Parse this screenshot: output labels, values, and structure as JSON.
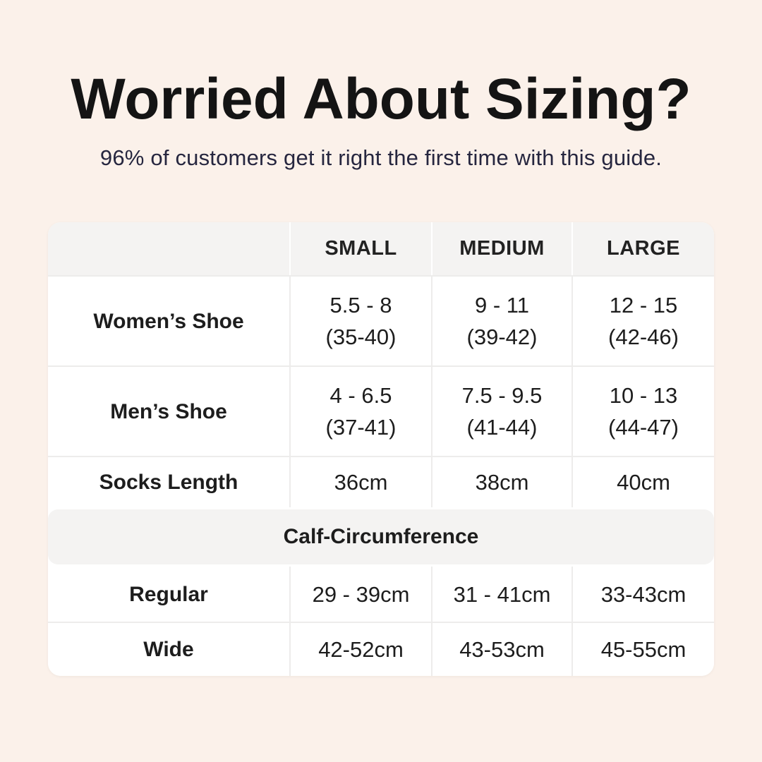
{
  "page": {
    "title": "Worried About Sizing?",
    "subtitle": "96% of customers get it right the first time with this guide.",
    "background_color": "#fbf1ea",
    "title_color": "#141414",
    "subtitle_color": "#26263f"
  },
  "table": {
    "corner_label": "",
    "columns": [
      "SMALL",
      "MEDIUM",
      "LARGE"
    ],
    "rows": [
      {
        "label": "Women’s Shoe",
        "cells": [
          {
            "top": "5.5 - 8",
            "bottom": "(35-40)"
          },
          {
            "top": "9 - 11",
            "bottom": "(39-42)"
          },
          {
            "top": "12 - 15",
            "bottom": "(42-46)"
          }
        ]
      },
      {
        "label": "Men’s Shoe",
        "cells": [
          {
            "top": "4 - 6.5",
            "bottom": "(37-41)"
          },
          {
            "top": "7.5 - 9.5",
            "bottom": "(41-44)"
          },
          {
            "top": "10 - 13",
            "bottom": "(44-47)"
          }
        ]
      },
      {
        "label": "Socks Length",
        "cells": [
          {
            "top": "36cm"
          },
          {
            "top": "38cm"
          },
          {
            "top": "40cm"
          }
        ]
      }
    ],
    "section_header": "Calf-Circumference",
    "section_rows": [
      {
        "label": "Regular",
        "cells": [
          {
            "top": "29 - 39cm"
          },
          {
            "top": "31 - 41cm"
          },
          {
            "top": "33-43cm"
          }
        ]
      },
      {
        "label": "Wide",
        "cells": [
          {
            "top": "42-52cm"
          },
          {
            "top": "43-53cm"
          },
          {
            "top": "45-55cm"
          }
        ]
      }
    ],
    "colors": {
      "card_background": "#ffffff",
      "header_background": "#f4f3f2",
      "divider": "#edeceb",
      "text": "#1d1d1d"
    }
  }
}
